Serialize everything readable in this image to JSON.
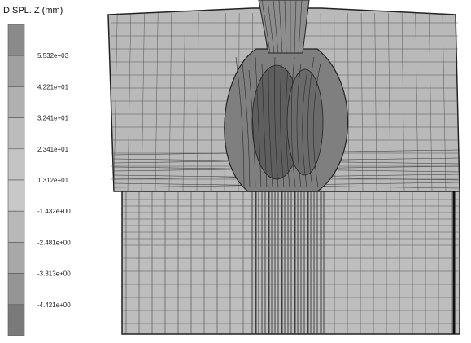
{
  "legend": {
    "title": "DISPL. Z (mm)",
    "labels": [
      "5.532e+03",
      "4.221e+01",
      "3.241e+01",
      "2.341e+01",
      "1.312e+01",
      "-1.432e+00",
      "-2.481e+00",
      "-3.313e+00",
      "-4.421e+00"
    ]
  }
}
